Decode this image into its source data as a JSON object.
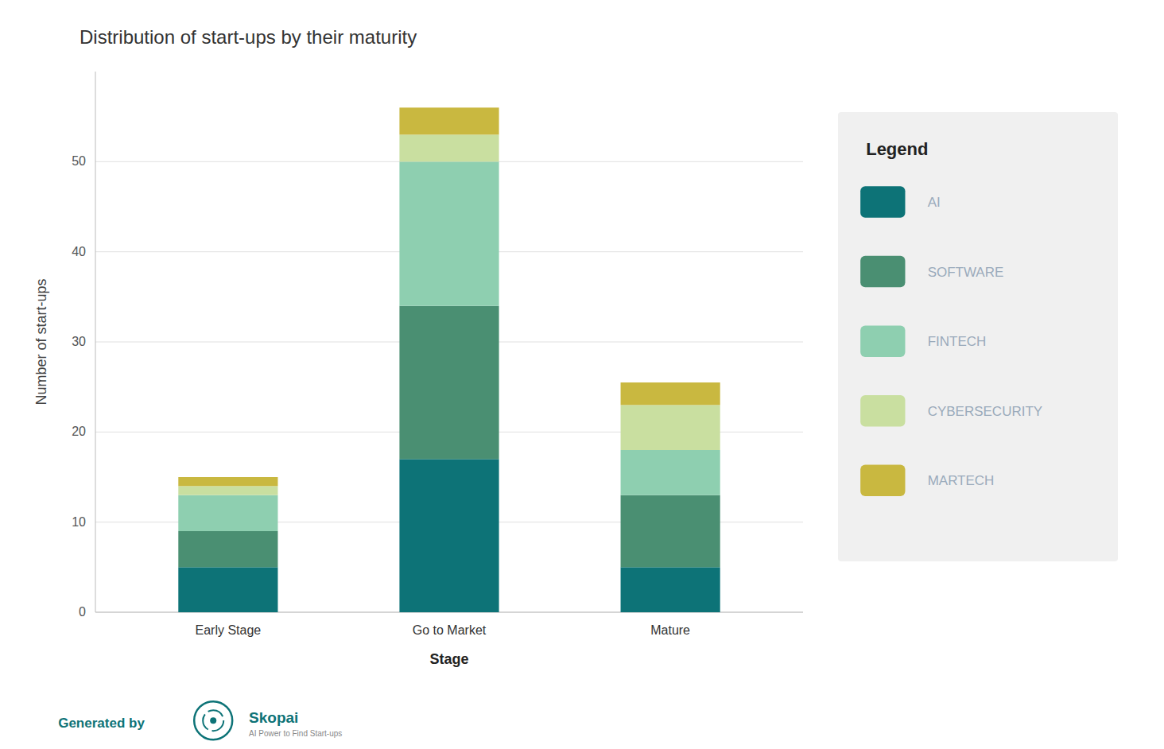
{
  "chart_data": {
    "type": "bar",
    "stacked": true,
    "title": "Distribution of start-ups by their maturity",
    "x_label": "Stage",
    "y_label": "Number of start-ups",
    "categories": [
      "Early Stage",
      "Go to Market",
      "Mature"
    ],
    "series": [
      {
        "name": "AI",
        "color": "#0d7377",
        "values": [
          5,
          17,
          5
        ]
      },
      {
        "name": "SOFTWARE",
        "color": "#4a8f72",
        "values": [
          4,
          17,
          8
        ]
      },
      {
        "name": "FINTECH",
        "color": "#8ecfb0",
        "values": [
          4,
          16,
          5
        ]
      },
      {
        "name": "CYBERSECURITY",
        "color": "#c9dfa0",
        "values": [
          1,
          3,
          5
        ]
      },
      {
        "name": "MARTECH",
        "color": "#c9b840",
        "values": [
          1,
          3,
          2.5
        ]
      }
    ],
    "ylim": [
      0,
      60
    ],
    "yticks": [
      0,
      10,
      20,
      30,
      40,
      50
    ],
    "grid": true,
    "legend": "right",
    "legend_title": "Legend",
    "annotations": [
      "Generated by",
      "Skopai",
      "AI Power to Find Start-ups"
    ]
  }
}
